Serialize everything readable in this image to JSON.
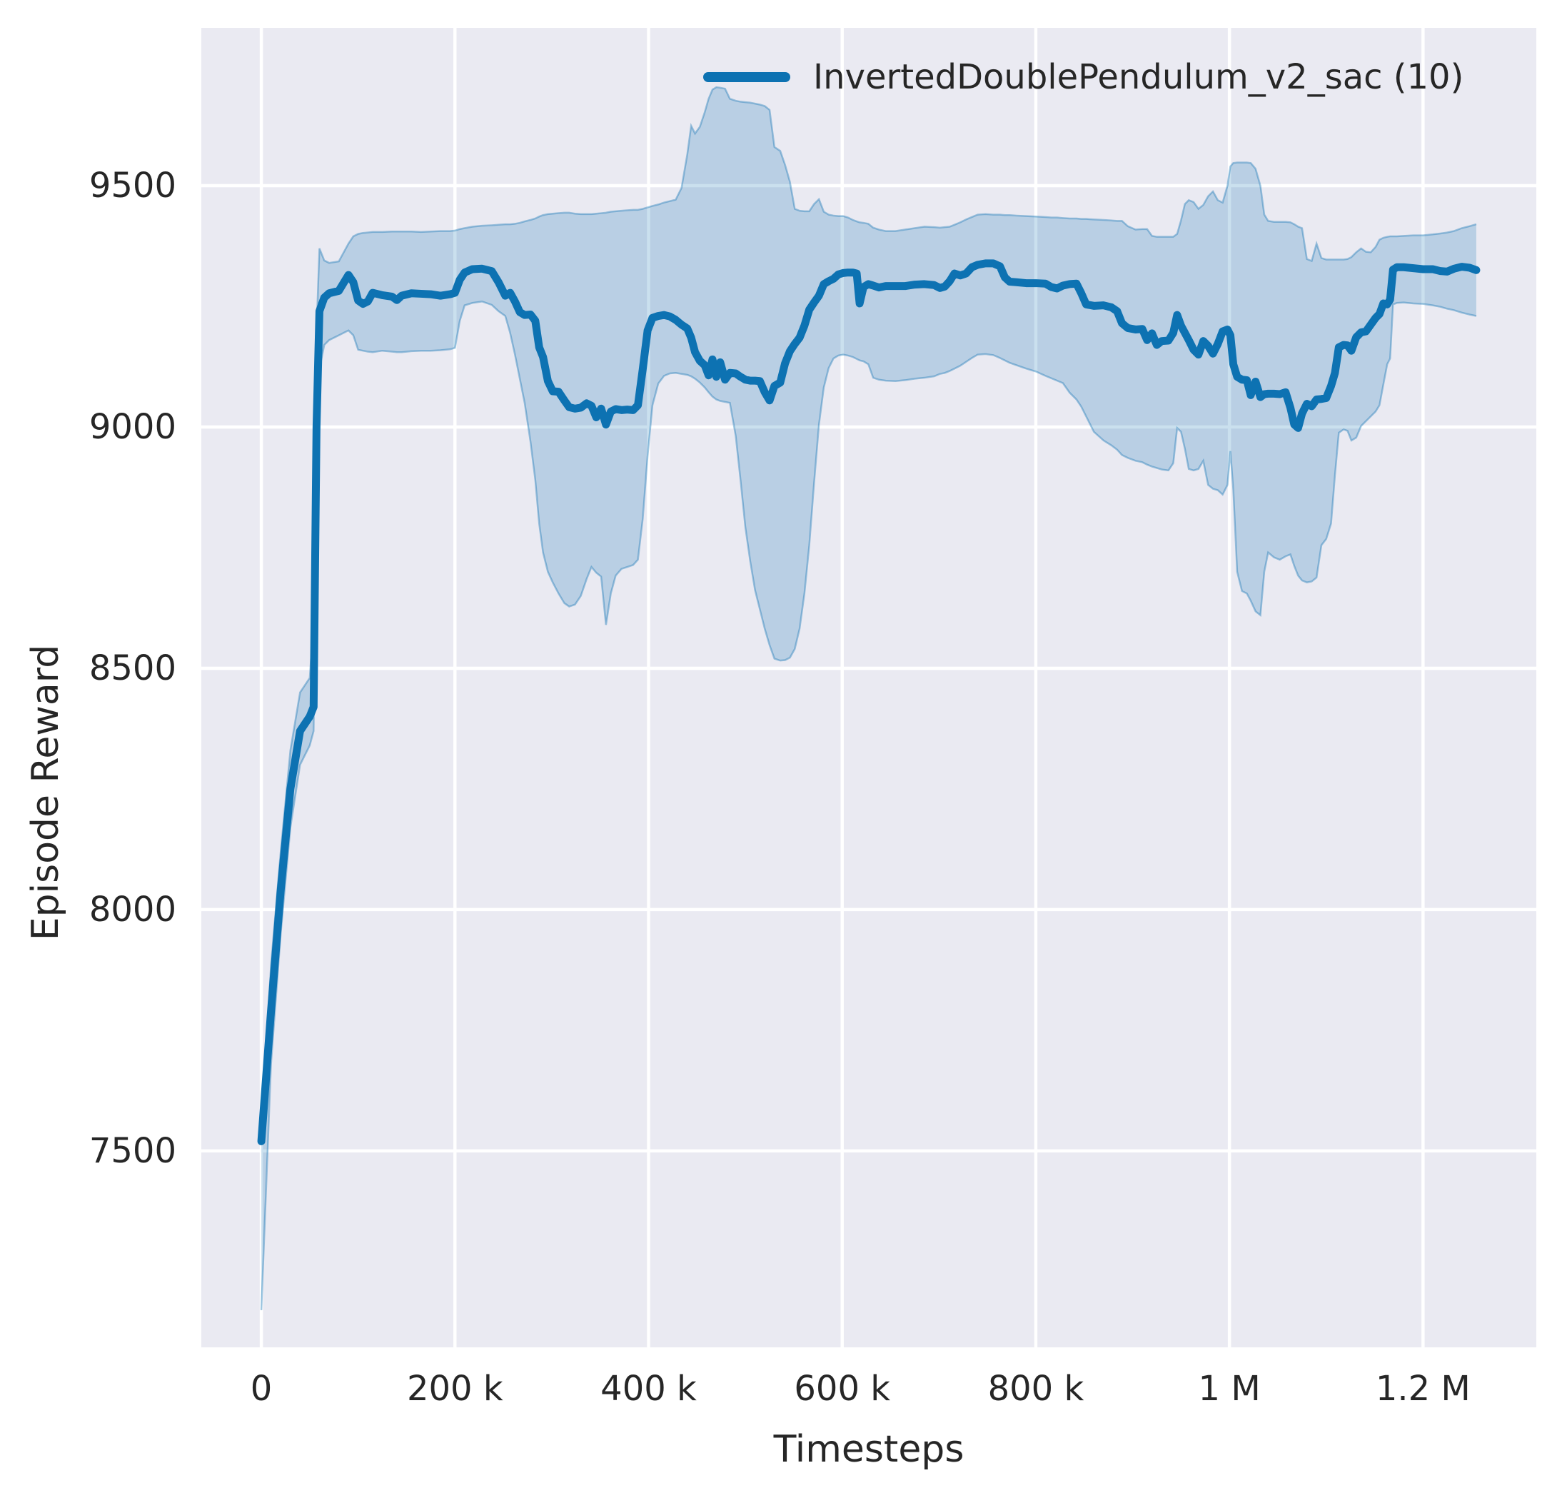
{
  "figure": {
    "xlabel": "Timesteps",
    "ylabel": "Episode Reward",
    "legend": {
      "label": "InvertedDoublePendulum_v2_sac (10)"
    }
  },
  "chart_data": {
    "type": "line",
    "title": "",
    "xlabel": "Timesteps",
    "ylabel": "Episode Reward",
    "legend_entries": [
      "InvertedDoublePendulum_v2_sac (10)"
    ],
    "legend_position": "upper center, frameless",
    "grid": true,
    "style": {
      "axes_background": "#eaeaf2",
      "grid_color": "#ffffff",
      "line_color": "#0d72b2",
      "band_color": "#0d72b2",
      "band_opacity": 0.22,
      "text_color": "#262626"
    },
    "x_unit": "timesteps, stored in thousands",
    "xlim_thousands": [
      -62,
      1317
    ],
    "ylim": [
      7093,
      9827
    ],
    "x_ticks": {
      "values_thousands": [
        0,
        200,
        400,
        600,
        800,
        1000,
        1200
      ],
      "labels": [
        "0",
        "200 k",
        "400 k",
        "600 k",
        "800 k",
        "1 M",
        "1.2 M"
      ]
    },
    "y_ticks": {
      "values": [
        7500,
        8000,
        8500,
        9000,
        9500
      ],
      "labels": [
        "7500",
        "8000",
        "8500",
        "9000",
        "9500"
      ]
    },
    "series_name": "InvertedDoublePendulum_v2_sac (10)",
    "columns": [
      "timesteps_thousands",
      "mean_reward",
      "band_low",
      "band_high"
    ],
    "points": [
      [
        0,
        7520,
        7170,
        7545
      ],
      [
        10,
        7790,
        7680,
        7885
      ],
      [
        20,
        8040,
        7950,
        8120
      ],
      [
        30,
        8250,
        8170,
        8330
      ],
      [
        40,
        8370,
        8300,
        8450
      ],
      [
        50,
        8400,
        8340,
        8480
      ],
      [
        54,
        8420,
        8370,
        8600
      ],
      [
        57,
        9000,
        8800,
        9200
      ],
      [
        60,
        9240,
        9120,
        9370
      ],
      [
        65,
        9268,
        9170,
        9345
      ],
      [
        70,
        9277,
        9180,
        9340
      ],
      [
        80,
        9282,
        9190,
        9343
      ],
      [
        90,
        9315,
        9200,
        9380
      ],
      [
        95,
        9300,
        9190,
        9395
      ],
      [
        100,
        9262,
        9160,
        9400
      ],
      [
        105,
        9255,
        9158,
        9402
      ],
      [
        110,
        9260,
        9156,
        9403
      ],
      [
        115,
        9278,
        9155,
        9404
      ],
      [
        125,
        9273,
        9158,
        9404
      ],
      [
        135,
        9270,
        9156,
        9405
      ],
      [
        140,
        9263,
        9155,
        9405
      ],
      [
        145,
        9272,
        9155,
        9405
      ],
      [
        155,
        9277,
        9157,
        9405
      ],
      [
        165,
        9276,
        9158,
        9404
      ],
      [
        175,
        9275,
        9158,
        9405
      ],
      [
        185,
        9272,
        9159,
        9406
      ],
      [
        195,
        9275,
        9161,
        9406
      ],
      [
        200,
        9278,
        9164,
        9407
      ],
      [
        205,
        9305,
        9220,
        9410
      ],
      [
        210,
        9320,
        9252,
        9412
      ],
      [
        218,
        9327,
        9257,
        9415
      ],
      [
        228,
        9328,
        9260,
        9417
      ],
      [
        238,
        9323,
        9253,
        9418
      ],
      [
        245,
        9300,
        9240,
        9419
      ],
      [
        252,
        9272,
        9230,
        9420
      ],
      [
        257,
        9278,
        9195,
        9420
      ],
      [
        262,
        9260,
        9150,
        9421
      ],
      [
        267,
        9238,
        9100,
        9423
      ],
      [
        272,
        9232,
        9050,
        9426
      ],
      [
        278,
        9233,
        8970,
        9429
      ],
      [
        283,
        9220,
        8890,
        9432
      ],
      [
        287,
        9165,
        8800,
        9436
      ],
      [
        291,
        9145,
        8740,
        9439
      ],
      [
        296,
        9095,
        8700,
        9441
      ],
      [
        301,
        9074,
        8678,
        9442
      ],
      [
        307,
        9073,
        8655,
        9443
      ],
      [
        313,
        9055,
        8635,
        9444
      ],
      [
        318,
        9041,
        8628,
        9444
      ],
      [
        324,
        9038,
        8632,
        9442
      ],
      [
        330,
        9040,
        8650,
        9441
      ],
      [
        336,
        9049,
        8685,
        9441
      ],
      [
        341,
        9044,
        8710,
        9441
      ],
      [
        346,
        9020,
        8698,
        9442
      ],
      [
        351,
        9038,
        8690,
        9443
      ],
      [
        356,
        9005,
        8590,
        9444
      ],
      [
        361,
        9032,
        8655,
        9446
      ],
      [
        366,
        9037,
        8692,
        9447
      ],
      [
        372,
        9035,
        8706,
        9448
      ],
      [
        378,
        9036,
        8710,
        9449
      ],
      [
        384,
        9035,
        8714,
        9450
      ],
      [
        389,
        9045,
        8725,
        9450
      ],
      [
        394,
        9120,
        8810,
        9452
      ],
      [
        399,
        9200,
        8940,
        9455
      ],
      [
        404,
        9226,
        9045,
        9458
      ],
      [
        410,
        9230,
        9090,
        9461
      ],
      [
        416,
        9232,
        9106,
        9465
      ],
      [
        422,
        9229,
        9111,
        9468
      ],
      [
        428,
        9222,
        9112,
        9471
      ],
      [
        434,
        9212,
        9110,
        9495
      ],
      [
        440,
        9204,
        9108,
        9565
      ],
      [
        444,
        9185,
        9105,
        9624
      ],
      [
        448,
        9155,
        9100,
        9608
      ],
      [
        453,
        9137,
        9092,
        9622
      ],
      [
        458,
        9128,
        9082,
        9652
      ],
      [
        462,
        9107,
        9072,
        9680
      ],
      [
        466,
        9140,
        9063,
        9699
      ],
      [
        470,
        9104,
        9057,
        9704
      ],
      [
        474,
        9134,
        9054,
        9703
      ],
      [
        479,
        9098,
        9052,
        9701
      ],
      [
        484,
        9112,
        9050,
        9680
      ],
      [
        490,
        9111,
        8982,
        9676
      ],
      [
        495,
        9104,
        8890,
        9674
      ],
      [
        500,
        9098,
        8792,
        9673
      ],
      [
        505,
        9096,
        8722,
        9672
      ],
      [
        510,
        9096,
        8662,
        9670
      ],
      [
        515,
        9095,
        8622,
        9668
      ],
      [
        520,
        9072,
        8582,
        9665
      ],
      [
        525,
        9055,
        8548,
        9657
      ],
      [
        530,
        9085,
        8520,
        9580
      ],
      [
        536,
        9092,
        8516,
        9572
      ],
      [
        541,
        9132,
        8517,
        9543
      ],
      [
        546,
        9157,
        8522,
        9508
      ],
      [
        551,
        9172,
        8540,
        9452
      ],
      [
        556,
        9185,
        8582,
        9448
      ],
      [
        561,
        9210,
        8655,
        9447
      ],
      [
        566,
        9243,
        8755,
        9447
      ],
      [
        571,
        9258,
        8885,
        9462
      ],
      [
        576,
        9272,
        9005,
        9472
      ],
      [
        581,
        9296,
        9082,
        9446
      ],
      [
        586,
        9302,
        9122,
        9440
      ],
      [
        591,
        9307,
        9142,
        9438
      ],
      [
        596,
        9316,
        9148,
        9437
      ],
      [
        601,
        9319,
        9150,
        9437
      ],
      [
        606,
        9320,
        9148,
        9434
      ],
      [
        611,
        9320,
        9145,
        9429
      ],
      [
        615,
        9318,
        9141,
        9426
      ],
      [
        618,
        9256,
        9138,
        9424
      ],
      [
        622,
        9290,
        9136,
        9423
      ],
      [
        627,
        9296,
        9130,
        9421
      ],
      [
        632,
        9293,
        9102,
        9413
      ],
      [
        638,
        9289,
        9098,
        9409
      ],
      [
        645,
        9292,
        9096,
        9406
      ],
      [
        655,
        9292,
        9095,
        9406
      ],
      [
        665,
        9292,
        9097,
        9409
      ],
      [
        675,
        9295,
        9100,
        9412
      ],
      [
        685,
        9296,
        9102,
        9415
      ],
      [
        695,
        9294,
        9105,
        9414
      ],
      [
        701,
        9288,
        9110,
        9413
      ],
      [
        706,
        9291,
        9112,
        9414
      ],
      [
        711,
        9302,
        9116,
        9415
      ],
      [
        716,
        9318,
        9121,
        9419
      ],
      [
        722,
        9314,
        9127,
        9424
      ],
      [
        728,
        9318,
        9135,
        9430
      ],
      [
        734,
        9331,
        9143,
        9435
      ],
      [
        740,
        9336,
        9150,
        9440
      ],
      [
        748,
        9339,
        9151,
        9441
      ],
      [
        756,
        9339,
        9149,
        9440
      ],
      [
        763,
        9333,
        9143,
        9440
      ],
      [
        768,
        9310,
        9138,
        9439
      ],
      [
        773,
        9301,
        9133,
        9439
      ],
      [
        780,
        9300,
        9128,
        9438
      ],
      [
        790,
        9298,
        9121,
        9437
      ],
      [
        800,
        9298,
        9115,
        9436
      ],
      [
        810,
        9297,
        9106,
        9435
      ],
      [
        816,
        9290,
        9101,
        9434
      ],
      [
        822,
        9287,
        9096,
        9434
      ],
      [
        828,
        9293,
        9091,
        9433
      ],
      [
        835,
        9296,
        9071,
        9432
      ],
      [
        842,
        9297,
        9057,
        9432
      ],
      [
        847,
        9277,
        9042,
        9431
      ],
      [
        852,
        9254,
        9022,
        9431
      ],
      [
        860,
        9251,
        8990,
        9430
      ],
      [
        870,
        9252,
        8972,
        9429
      ],
      [
        878,
        9248,
        8962,
        9428
      ],
      [
        884,
        9240,
        8953,
        9427
      ],
      [
        889,
        9215,
        8942,
        9427
      ],
      [
        895,
        9205,
        8936,
        9416
      ],
      [
        903,
        9202,
        8930,
        9409
      ],
      [
        910,
        9203,
        8927,
        9410
      ],
      [
        915,
        9180,
        8922,
        9410
      ],
      [
        920,
        9194,
        8918,
        9396
      ],
      [
        925,
        9170,
        8915,
        9394
      ],
      [
        930,
        9178,
        8912,
        9394
      ],
      [
        937,
        9179,
        8910,
        9394
      ],
      [
        942,
        9195,
        8925,
        9394
      ],
      [
        946,
        9232,
        8998,
        9400
      ],
      [
        950,
        9210,
        8990,
        9428
      ],
      [
        954,
        9195,
        8955,
        9462
      ],
      [
        958,
        9180,
        8913,
        9470
      ],
      [
        963,
        9160,
        8910,
        9466
      ],
      [
        968,
        9150,
        8913,
        9452
      ],
      [
        973,
        9178,
        8930,
        9460
      ],
      [
        978,
        9168,
        8880,
        9478
      ],
      [
        983,
        9152,
        8872,
        9488
      ],
      [
        988,
        9172,
        8869,
        9470
      ],
      [
        993,
        9198,
        8860,
        9465
      ],
      [
        998,
        9202,
        8880,
        9500
      ],
      [
        1001,
        9190,
        8950,
        9540
      ],
      [
        1004,
        9130,
        8870,
        9547
      ],
      [
        1008,
        9104,
        8700,
        9548
      ],
      [
        1013,
        9098,
        8660,
        9548
      ],
      [
        1018,
        9097,
        8655,
        9548
      ],
      [
        1022,
        9066,
        8640,
        9547
      ],
      [
        1027,
        9094,
        8618,
        9535
      ],
      [
        1032,
        9062,
        8610,
        9500
      ],
      [
        1036,
        9068,
        8700,
        9440
      ],
      [
        1040,
        9069,
        8740,
        9427
      ],
      [
        1046,
        9069,
        8730,
        9425
      ],
      [
        1052,
        9068,
        8725,
        9425
      ],
      [
        1058,
        9072,
        8732,
        9425
      ],
      [
        1063,
        9040,
        8736,
        9424
      ],
      [
        1067,
        9005,
        8712,
        9420
      ],
      [
        1071,
        8998,
        8692,
        9415
      ],
      [
        1075,
        9028,
        8682,
        9412
      ],
      [
        1080,
        9048,
        8678,
        9348
      ],
      [
        1085,
        9043,
        8680,
        9344
      ],
      [
        1090,
        9057,
        8688,
        9380
      ],
      [
        1095,
        9058,
        8755,
        9350
      ],
      [
        1100,
        9060,
        8768,
        9347
      ],
      [
        1105,
        9085,
        8800,
        9347
      ],
      [
        1109,
        9112,
        8900,
        9347
      ],
      [
        1113,
        9165,
        8988,
        9347
      ],
      [
        1118,
        9170,
        8995,
        9347
      ],
      [
        1122,
        9169,
        8992,
        9348
      ],
      [
        1126,
        9158,
        8972,
        9352
      ],
      [
        1131,
        9186,
        8978,
        9362
      ],
      [
        1136,
        9196,
        9002,
        9370
      ],
      [
        1141,
        9198,
        9012,
        9363
      ],
      [
        1146,
        9212,
        9022,
        9362
      ],
      [
        1151,
        9226,
        9032,
        9373
      ],
      [
        1155,
        9234,
        9045,
        9388
      ],
      [
        1159,
        9256,
        9088,
        9392
      ],
      [
        1163,
        9254,
        9130,
        9394
      ],
      [
        1166,
        9264,
        9142,
        9395
      ],
      [
        1169,
        9326,
        9254,
        9395
      ],
      [
        1173,
        9331,
        9257,
        9395
      ],
      [
        1180,
        9331,
        9258,
        9396
      ],
      [
        1190,
        9329,
        9256,
        9397
      ],
      [
        1200,
        9327,
        9255,
        9397
      ],
      [
        1210,
        9327,
        9252,
        9399
      ],
      [
        1218,
        9323,
        9249,
        9401
      ],
      [
        1225,
        9322,
        9245,
        9403
      ],
      [
        1232,
        9328,
        9242,
        9406
      ],
      [
        1240,
        9332,
        9237,
        9412
      ],
      [
        1248,
        9330,
        9233,
        9416
      ],
      [
        1255,
        9325,
        9230,
        9420
      ]
    ]
  }
}
